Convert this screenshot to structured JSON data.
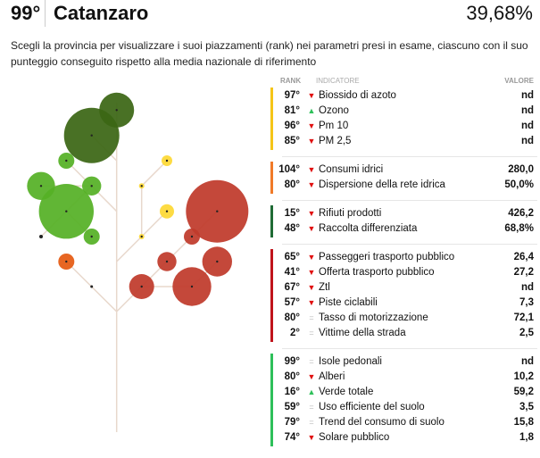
{
  "header": {
    "rank": "99°",
    "province": "Catanzaro",
    "score": "39,68%"
  },
  "description": "Scegli la provincia per visualizzare i suoi piazzamenti (rank) nei parametri presi in esame, ciascuno con il suo punteggio conseguito rispetto alla media nazionale di riferimento",
  "table": {
    "columns": {
      "rank": "RANK",
      "indicator": "INDICATORE",
      "value": "VALORE"
    },
    "groups": [
      {
        "color": "#f5c518",
        "rows": [
          {
            "rank": "97°",
            "trend": "down",
            "name": "Biossido di azoto",
            "value": "nd"
          },
          {
            "rank": "81°",
            "trend": "up",
            "name": "Ozono",
            "value": "nd"
          },
          {
            "rank": "96°",
            "trend": "down",
            "name": "Pm 10",
            "value": "nd"
          },
          {
            "rank": "85°",
            "trend": "down",
            "name": "PM 2,5",
            "value": "nd"
          }
        ]
      },
      {
        "color": "#f07a28",
        "rows": [
          {
            "rank": "104°",
            "trend": "down",
            "name": "Consumi idrici",
            "value": "280,0"
          },
          {
            "rank": "80°",
            "trend": "down",
            "name": "Dispersione della rete idrica",
            "value": "50,0%"
          }
        ]
      },
      {
        "color": "#1f6b35",
        "rows": [
          {
            "rank": "15°",
            "trend": "down",
            "name": "Rifiuti prodotti",
            "value": "426,2"
          },
          {
            "rank": "48°",
            "trend": "down",
            "name": "Raccolta differenziata",
            "value": "68,8%"
          }
        ]
      },
      {
        "color": "#c0141c",
        "rows": [
          {
            "rank": "65°",
            "trend": "down",
            "name": "Passeggeri trasporto pubblico",
            "value": "26,4"
          },
          {
            "rank": "41°",
            "trend": "down",
            "name": "Offerta trasporto pubblico",
            "value": "27,2"
          },
          {
            "rank": "67°",
            "trend": "down",
            "name": "Ztl",
            "value": "nd"
          },
          {
            "rank": "57°",
            "trend": "down",
            "name": "Piste ciclabili",
            "value": "7,3"
          },
          {
            "rank": "80°",
            "trend": "equal",
            "name": "Tasso di motorizzazione",
            "value": "72,1"
          },
          {
            "rank": "2°",
            "trend": "equal",
            "name": "Vittime della strada",
            "value": "2,5"
          }
        ]
      },
      {
        "color": "#2ec05a",
        "rows": [
          {
            "rank": "99°",
            "trend": "equal",
            "name": "Isole pedonali",
            "value": "nd"
          },
          {
            "rank": "80°",
            "trend": "down",
            "name": "Alberi",
            "value": "10,2"
          },
          {
            "rank": "16°",
            "trend": "up",
            "name": "Verde totale",
            "value": "59,2"
          },
          {
            "rank": "59°",
            "trend": "equal",
            "name": "Uso efficiente del suolo",
            "value": "3,5"
          },
          {
            "rank": "79°",
            "trend": "equal",
            "name": "Trend del consumo di suolo",
            "value": "15,8"
          },
          {
            "rank": "74°",
            "trend": "down",
            "name": "Solare pubblico",
            "value": "1,8"
          }
        ]
      }
    ]
  },
  "colors": {
    "dark_green": "#3b6614",
    "green": "#55b026",
    "orange": "#e55a12",
    "yellow": "#fdd835",
    "red": "#bf3a2b",
    "branch": "#e8d8cc"
  }
}
